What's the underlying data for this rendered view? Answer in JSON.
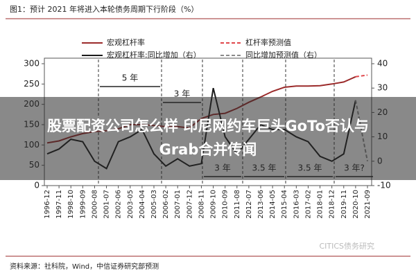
{
  "chart_data": {
    "type": "line",
    "title": "图1：预计 2021 年将进入本轮债务周期下行阶段（%）",
    "categories": [
      "1996-12",
      "1997-11",
      "1998-10",
      "1999-09",
      "2000-08",
      "2001-07",
      "2002-06",
      "2003-05",
      "2004-04",
      "2005-03",
      "2006-02",
      "2007-01",
      "2007-12",
      "2008-11",
      "2009-10",
      "2010-09",
      "2011-08",
      "2012-07",
      "2013-06",
      "2014-05",
      "2015-04",
      "2016-03",
      "2017-02",
      "2018-01",
      "2018-12",
      "2019-11",
      "2020-10",
      "2021-09"
    ],
    "series": [
      {
        "name": "宏观杠杆率",
        "color": "#9b2a2a",
        "dashed": false,
        "values": [
          105,
          110,
          120,
          128,
          133,
          135,
          140,
          150,
          150,
          148,
          145,
          145,
          142,
          165,
          175,
          178,
          190,
          205,
          218,
          232,
          242,
          245,
          245,
          246,
          250,
          255,
          268,
          null
        ]
      },
      {
        "name": "杠杆率预测值",
        "color": "#e0464a",
        "dashed": true,
        "values": [
          null,
          null,
          null,
          null,
          null,
          null,
          null,
          null,
          null,
          null,
          null,
          null,
          null,
          null,
          null,
          null,
          null,
          null,
          null,
          null,
          null,
          null,
          null,
          null,
          null,
          null,
          268,
          272
        ]
      },
      {
        "name": "宏观杠杆率:同比增加（右）",
        "color": "#1a1a1a",
        "dashed": false,
        "axis": "y2",
        "values": [
          3,
          5,
          9,
          8,
          0,
          -3,
          8,
          10,
          13,
          3,
          -2,
          1,
          -2,
          -1,
          30,
          10,
          3,
          9,
          15,
          13,
          13,
          10,
          8,
          2,
          0,
          3,
          25,
          null
        ]
      },
      {
        "name": "同比增加预测值（右）",
        "color": "#8a8a8a",
        "dashed": true,
        "axis": "y2",
        "values": [
          null,
          null,
          null,
          null,
          null,
          null,
          null,
          null,
          null,
          null,
          null,
          null,
          null,
          null,
          null,
          null,
          null,
          null,
          null,
          null,
          null,
          null,
          null,
          null,
          null,
          null,
          25,
          0
        ]
      }
    ],
    "ylim": [
      0,
      300
    ],
    "yticks": [
      0,
      50,
      100,
      150,
      200,
      250,
      300
    ],
    "y2lim": [
      -10,
      40
    ],
    "y2ticks": [
      -10,
      0,
      10,
      20,
      30,
      40
    ],
    "annotations": [
      "5 年",
      "3 年",
      "3 年",
      "3.5 年",
      "3.5 年",
      "3 年?"
    ],
    "source": "资料来源：社科院，Wind，中信证券研究部预测",
    "watermark": "CITICS债务研究"
  },
  "overlay_title": [
    "股票配资公司怎么样 印尼网约车巨头GoTo否认与",
    "Grab合并传闻"
  ]
}
